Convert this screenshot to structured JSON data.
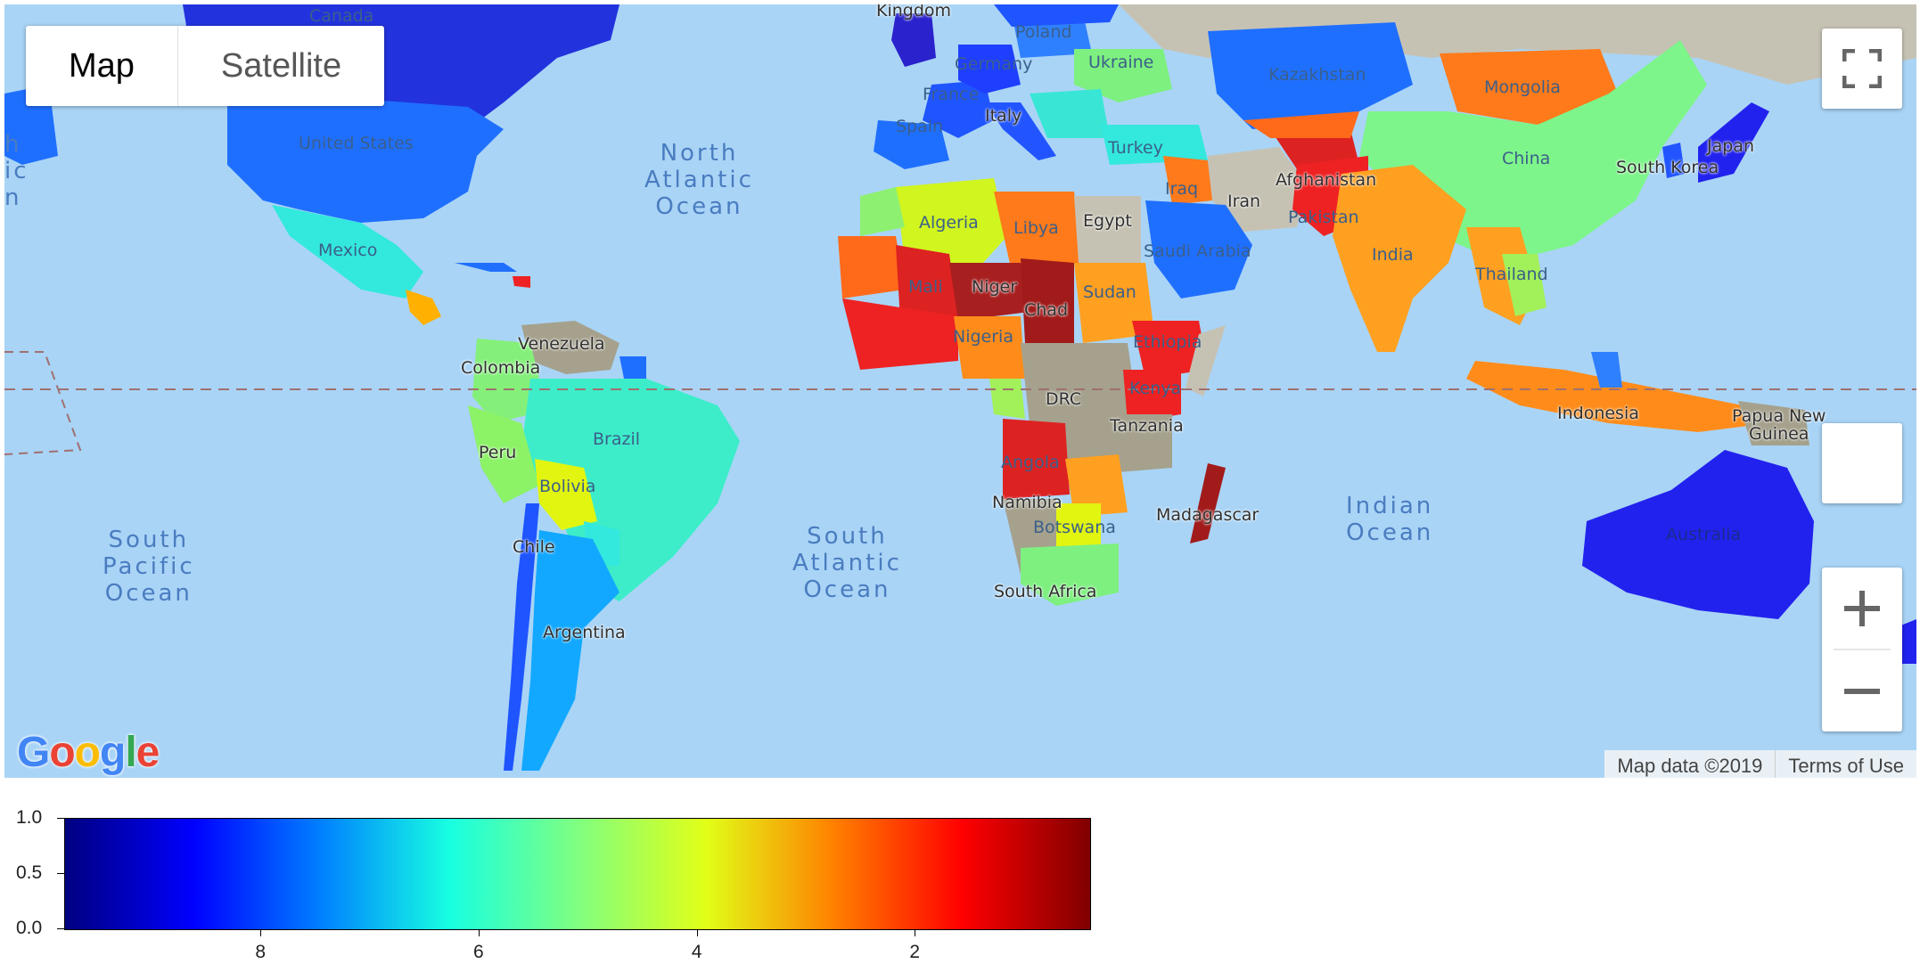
{
  "map": {
    "map_type_control": {
      "map_label": "Map",
      "satellite_label": "Satellite",
      "selected": "Map"
    },
    "attribution": {
      "map_data": "Map data ©2019",
      "terms": "Terms of Use"
    },
    "logo_text": "Google",
    "icons": {
      "fullscreen": "fullscreen-icon",
      "pegman": "pegman-icon",
      "zoom_in": "zoom-in-icon",
      "zoom_out": "zoom-out-icon"
    },
    "ocean_labels": {
      "north_atlantic": "North\nAtlantic\nOcean",
      "south_atlantic": "South\nAtlantic\nOcean",
      "south_pacific": "South\nPacific\nOcean",
      "indian": "Indian\nOcean",
      "partial_left": "h\nic\nn"
    },
    "country_labels": {
      "canada": "Canada",
      "united_states": "United States",
      "mexico": "Mexico",
      "venezuela": "Venezuela",
      "colombia": "Colombia",
      "brazil": "Brazil",
      "peru": "Peru",
      "bolivia": "Bolivia",
      "chile": "Chile",
      "argentina": "Argentina",
      "united_kingdom": "Kingdom",
      "poland": "Poland",
      "germany": "Germany",
      "france": "France",
      "spain": "Spain",
      "italy": "Italy",
      "ukraine": "Ukraine",
      "turkey": "Turkey",
      "kazakhstan": "Kazakhstan",
      "mongolia": "Mongolia",
      "china": "China",
      "south_korea": "South Korea",
      "japan": "Japan",
      "iran": "Iran",
      "iraq": "Iraq",
      "afghanistan": "Afghanistan",
      "pakistan": "Pakistan",
      "india": "India",
      "saudi_arabia": "Saudi Arabia",
      "thailand": "Thailand",
      "indonesia": "Indonesia",
      "papua_new_guinea": "Papua New\nGuinea",
      "australia": "Australia",
      "algeria": "Algeria",
      "libya": "Libya",
      "egypt": "Egypt",
      "mali": "Mali",
      "niger": "Niger",
      "chad": "Chad",
      "sudan": "Sudan",
      "nigeria": "Nigeria",
      "ethiopia": "Ethiopia",
      "kenya": "Kenya",
      "drc": "DRC",
      "tanzania": "Tanzania",
      "angola": "Angola",
      "namibia": "Namibia",
      "botswana": "Botswana",
      "madagascar": "Madagascar",
      "south_africa": "South Africa"
    },
    "colors": {
      "ocean": "#a9d4f6",
      "land": "#c6c2b3",
      "equator": "#a07070"
    }
  },
  "chart_data": {
    "type": "heatmap",
    "colormap": "jet",
    "orientation": "horizontal colorbar",
    "x_ticks": [
      "8",
      "6",
      "4",
      "2"
    ],
    "x_tick_values": [
      8,
      6,
      4,
      2
    ],
    "xlim": [
      9.8,
      0.4
    ],
    "y_ticks": [
      "1.0",
      "0.5",
      "0.0"
    ],
    "y_tick_values": [
      1.0,
      0.5,
      0.0
    ],
    "ylim": [
      0,
      1
    ],
    "xlabel": "",
    "ylabel": "",
    "title": ""
  }
}
